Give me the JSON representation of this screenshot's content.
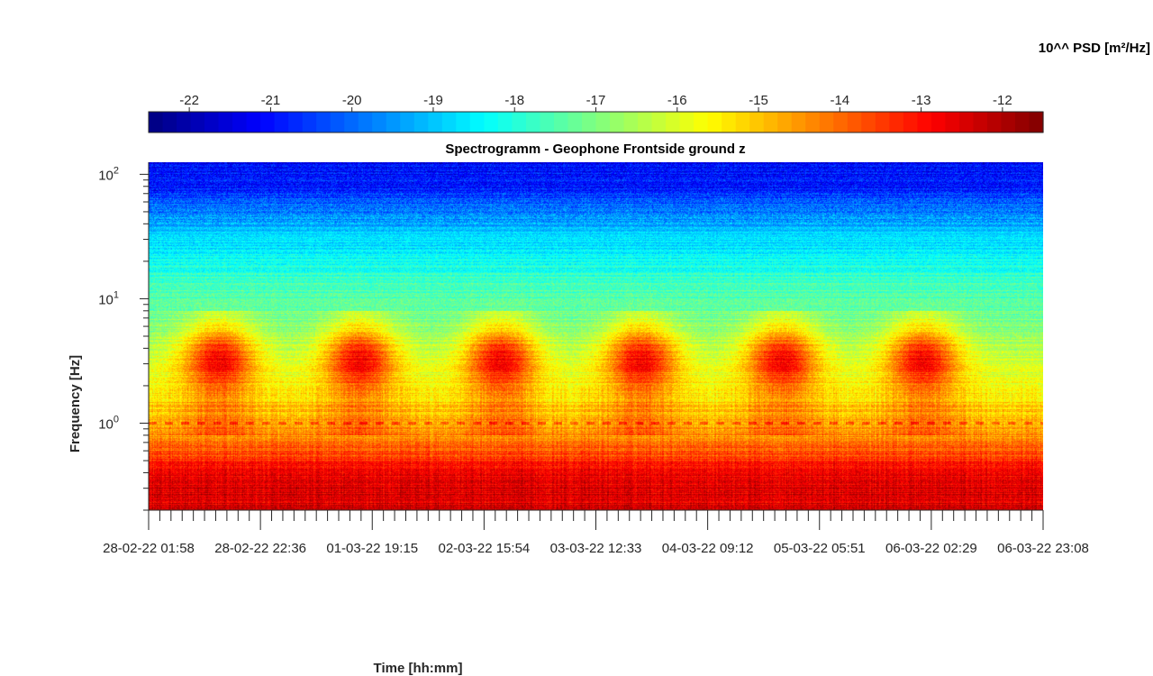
{
  "chart_data": {
    "type": "heatmap",
    "title": "Spectrogramm - Geophone Frontside ground z",
    "xlabel": "Time [hh:mm]",
    "ylabel": "Frequency [Hz]",
    "y_scale": "log",
    "ylim": [
      0.2,
      125
    ],
    "y_ticks": [
      {
        "value": 100,
        "base": "10",
        "exp": "2"
      },
      {
        "value": 10,
        "base": "10",
        "exp": "1"
      },
      {
        "value": 1,
        "base": "10",
        "exp": "0"
      }
    ],
    "x_tick_labels": [
      "28-02-22 01:58",
      "28-02-22 22:36",
      "01-03-22 19:15",
      "02-03-22 15:54",
      "03-03-22 12:33",
      "04-03-22 09:12",
      "05-03-22 05:51",
      "06-03-22 02:29",
      "06-03-22 23:08"
    ],
    "colorbar": {
      "label": "10^^ PSD [m²/Hz]",
      "range": [
        -22.5,
        -11.5
      ],
      "ticks": [
        "-22",
        "-21",
        "-20",
        "-19",
        "-18",
        "-17",
        "-16",
        "-15",
        "-14",
        "-13",
        "-12"
      ],
      "colormap": "jet",
      "position": "top"
    },
    "features": {
      "background_bands": [
        {
          "freq_range": [
            60,
            125
          ],
          "log_psd": -21.0
        },
        {
          "freq_range": [
            20,
            60
          ],
          "log_psd": -19.0
        },
        {
          "freq_range": [
            6,
            20
          ],
          "log_psd": -17.5
        },
        {
          "freq_range": [
            1.1,
            6
          ],
          "log_psd": -16.0
        },
        {
          "freq_range": [
            0.6,
            1.1
          ],
          "log_psd": -14.5
        },
        {
          "freq_range": [
            0.2,
            0.6
          ],
          "log_psd": -12.5
        }
      ],
      "daily_bursts": {
        "count": 6,
        "freq_range": [
          2,
          5
        ],
        "log_psd": -13.5
      },
      "spectral_line_hz": 1.0
    }
  }
}
